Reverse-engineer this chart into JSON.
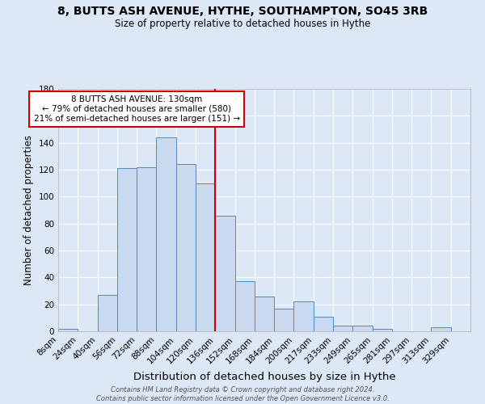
{
  "title": "8, BUTTS ASH AVENUE, HYTHE, SOUTHAMPTON, SO45 3RB",
  "subtitle": "Size of property relative to detached houses in Hythe",
  "xlabel": "Distribution of detached houses by size in Hythe",
  "ylabel": "Number of detached properties",
  "bin_labels": [
    "8sqm",
    "24sqm",
    "40sqm",
    "56sqm",
    "72sqm",
    "88sqm",
    "104sqm",
    "120sqm",
    "136sqm",
    "152sqm",
    "168sqm",
    "184sqm",
    "200sqm",
    "217sqm",
    "233sqm",
    "249sqm",
    "265sqm",
    "281sqm",
    "297sqm",
    "313sqm",
    "329sqm"
  ],
  "bar_heights": [
    2,
    0,
    27,
    121,
    122,
    144,
    124,
    110,
    86,
    37,
    26,
    17,
    22,
    11,
    4,
    4,
    2,
    0,
    0,
    3,
    0
  ],
  "bar_color": "#c9d9f0",
  "bar_edge_color": "#5588bb",
  "vline_color": "#cc0000",
  "annotation_text": "8 BUTTS ASH AVENUE: 130sqm\n← 79% of detached houses are smaller (580)\n21% of semi-detached houses are larger (151) →",
  "annotation_box_color": "#ffffff",
  "annotation_box_edge": "#cc0000",
  "footer_text": "Contains HM Land Registry data © Crown copyright and database right 2024.\nContains public sector information licensed under the Open Government Licence v3.0.",
  "background_color": "#dce8f5",
  "ylim": [
    0,
    180
  ],
  "vline_index": 8
}
